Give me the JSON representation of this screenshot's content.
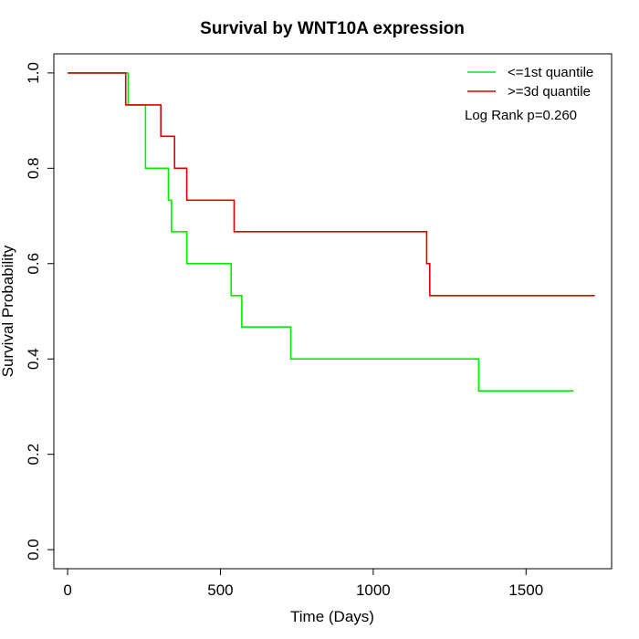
{
  "chart_data": {
    "type": "line",
    "title": "Survival by WNT10A expression",
    "xlabel": "Time (Days)",
    "ylabel": "Survival Probability",
    "xlim": [
      -45,
      1780
    ],
    "ylim": [
      -0.04,
      1.04
    ],
    "xticks": [
      0,
      500,
      1000,
      1500
    ],
    "xtick_labels": [
      "0",
      "500",
      "1000",
      "1500"
    ],
    "yticks": [
      0.0,
      0.2,
      0.4,
      0.6,
      0.8,
      1.0
    ],
    "ytick_labels": [
      "0.0",
      "0.2",
      "0.4",
      "0.6",
      "0.8",
      "1.0"
    ],
    "grid": false,
    "legend_position": "top-right",
    "annotation": "Log Rank p=0.260",
    "series": [
      {
        "name": "<=1st quantile",
        "color": "#00ee00",
        "step": true,
        "x": [
          0,
          198,
          198,
          255,
          255,
          330,
          330,
          340,
          340,
          390,
          390,
          535,
          535,
          570,
          570,
          730,
          730,
          1345,
          1345,
          1655
        ],
        "y": [
          1.0,
          1.0,
          0.933,
          0.933,
          0.8,
          0.8,
          0.733,
          0.733,
          0.667,
          0.667,
          0.6,
          0.6,
          0.533,
          0.533,
          0.467,
          0.467,
          0.4,
          0.4,
          0.333,
          0.333
        ]
      },
      {
        "name": ">=3d quantile",
        "color": "#dd0000",
        "step": true,
        "x": [
          0,
          190,
          190,
          305,
          305,
          350,
          350,
          390,
          390,
          545,
          545,
          1175,
          1175,
          1185,
          1185,
          1725
        ],
        "y": [
          1.0,
          1.0,
          0.933,
          0.933,
          0.867,
          0.867,
          0.8,
          0.8,
          0.733,
          0.733,
          0.667,
          0.667,
          0.6,
          0.6,
          0.533,
          0.533
        ]
      }
    ]
  }
}
